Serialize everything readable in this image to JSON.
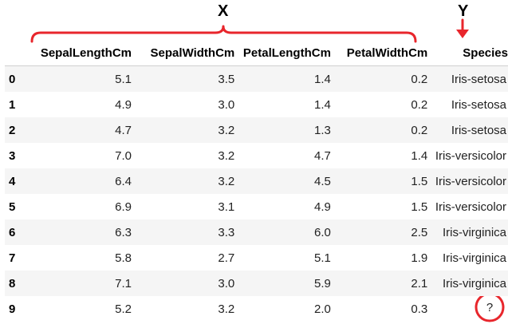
{
  "annotations": {
    "x_label": "X",
    "y_label": "Y",
    "missing_value": "?",
    "accent_color": "#e8262c"
  },
  "table": {
    "columns": [
      "SepalLengthCm",
      "SepalWidthCm",
      "PetalLengthCm",
      "PetalWidthCm",
      "Species"
    ],
    "rows": [
      {
        "index": "0",
        "cells": [
          "5.1",
          "3.5",
          "1.4",
          "0.2",
          "Iris-setosa"
        ]
      },
      {
        "index": "1",
        "cells": [
          "4.9",
          "3.0",
          "1.4",
          "0.2",
          "Iris-setosa"
        ]
      },
      {
        "index": "2",
        "cells": [
          "4.7",
          "3.2",
          "1.3",
          "0.2",
          "Iris-setosa"
        ]
      },
      {
        "index": "3",
        "cells": [
          "7.0",
          "3.2",
          "4.7",
          "1.4",
          "Iris-versicolor"
        ]
      },
      {
        "index": "4",
        "cells": [
          "6.4",
          "3.2",
          "4.5",
          "1.5",
          "Iris-versicolor"
        ]
      },
      {
        "index": "5",
        "cells": [
          "6.9",
          "3.1",
          "4.9",
          "1.5",
          "Iris-versicolor"
        ]
      },
      {
        "index": "6",
        "cells": [
          "6.3",
          "3.3",
          "6.0",
          "2.5",
          "Iris-virginica"
        ]
      },
      {
        "index": "7",
        "cells": [
          "5.8",
          "2.7",
          "5.1",
          "1.9",
          "Iris-virginica"
        ]
      },
      {
        "index": "8",
        "cells": [
          "7.1",
          "3.0",
          "5.9",
          "2.1",
          "Iris-virginica"
        ]
      },
      {
        "index": "9",
        "cells": [
          "5.2",
          "3.2",
          "2.0",
          "0.3",
          ""
        ]
      }
    ]
  }
}
